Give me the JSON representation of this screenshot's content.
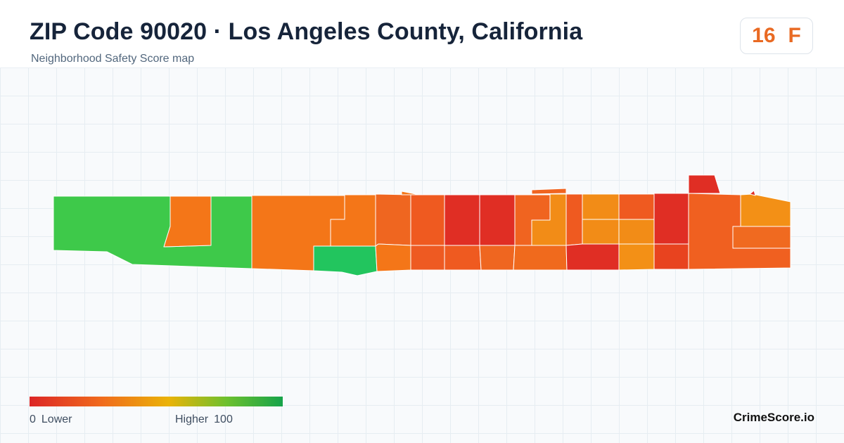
{
  "header": {
    "title": "ZIP Code 90020 · Los Angeles County, California",
    "subtitle": "Neighborhood Safety Score map"
  },
  "score_badge": {
    "score": "16",
    "grade": "F",
    "color": "#e96a23"
  },
  "map": {
    "zip": "90020",
    "shape": "elongated east-west strip of census blocks",
    "palette": {
      "green": "#3ec94a",
      "teal_green": "#22c55e",
      "orange": "#f47618",
      "dark_orange": "#ee5e20",
      "amber": "#f28c17",
      "red": "#e02e24"
    }
  },
  "legend": {
    "min_value": "0",
    "min_label": "Lower",
    "max_label": "Higher",
    "max_value": "100",
    "gradient_colors": [
      "#dc2626",
      "#f06a1d",
      "#eab308",
      "#6cc02e",
      "#16a34a"
    ]
  },
  "brand": "CrimeScore.io"
}
